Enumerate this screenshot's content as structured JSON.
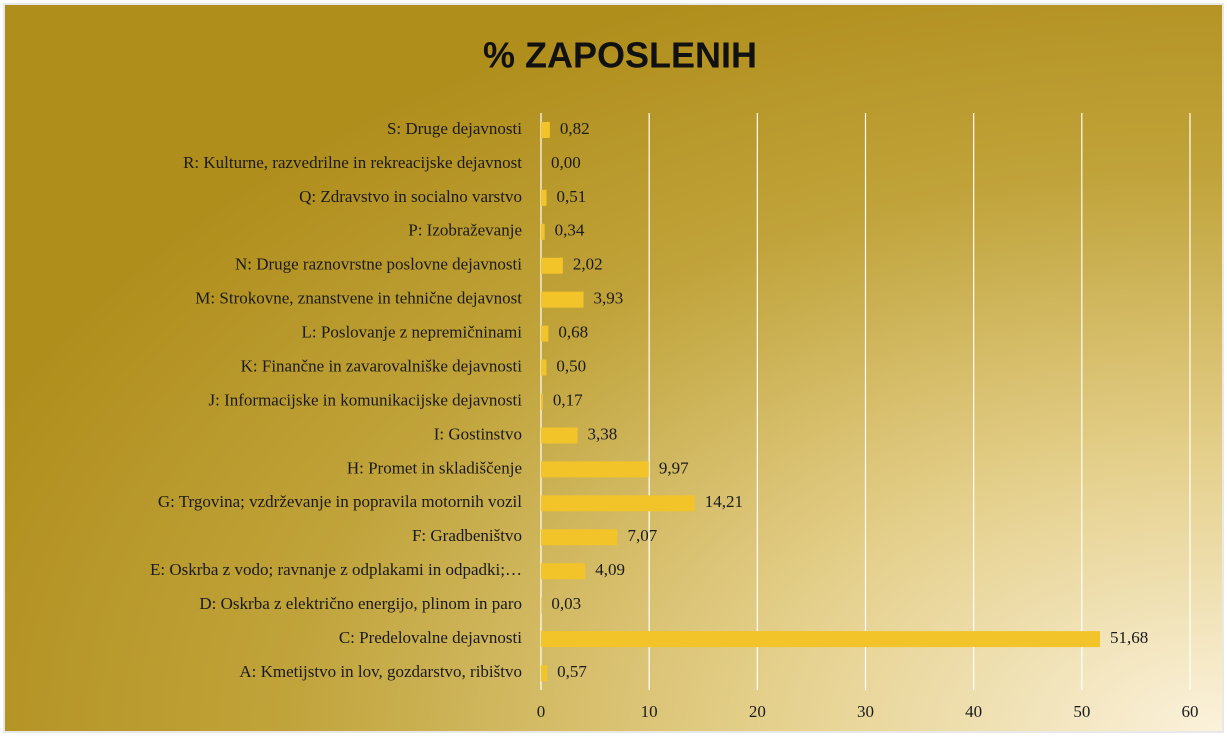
{
  "chart_data": {
    "type": "bar",
    "orientation": "horizontal",
    "title": "% ZAPOSLENIH",
    "categories": [
      "S: Druge dejavnosti",
      "R: Kulturne, razvedrilne in rekreacijske dejavnost",
      "Q: Zdravstvo in socialno varstvo",
      "P: Izobraževanje",
      "N: Druge raznovrstne poslovne dejavnosti",
      "M: Strokovne, znanstvene in tehnične dejavnost",
      "L: Poslovanje z nepremičninami",
      "K: Finančne in zavarovalniške dejavnosti",
      "J: Informacijske in komunikacijske dejavnosti",
      "I: Gostinstvo",
      "H: Promet in skladiščenje",
      "G: Trgovina; vzdrževanje in popravila motornih vozil",
      "F: Gradbeništvo",
      "E: Oskrba z vodo; ravnanje z odplakami in odpadki;…",
      "D: Oskrba z električno energijo, plinom in paro",
      "C: Predelovalne dejavnosti",
      "A: Kmetijstvo in lov, gozdarstvo, ribištvo"
    ],
    "values": [
      0.82,
      0.0,
      0.51,
      0.34,
      2.02,
      3.93,
      0.68,
      0.5,
      0.17,
      3.38,
      9.97,
      14.21,
      7.07,
      4.09,
      0.03,
      51.68,
      0.57
    ],
    "value_labels": [
      "0,82",
      "0,00",
      "0,51",
      "0,34",
      "2,02",
      "3,93",
      "0,68",
      "0,50",
      "0,17",
      "3,38",
      "9,97",
      "14,21",
      "7,07",
      "4,09",
      "0,03",
      "51,68",
      "0,57"
    ],
    "color": "#f2c42a",
    "xlim": [
      0,
      60
    ],
    "xticks": [
      0,
      10,
      20,
      30,
      40,
      50,
      60
    ],
    "grid": true
  }
}
